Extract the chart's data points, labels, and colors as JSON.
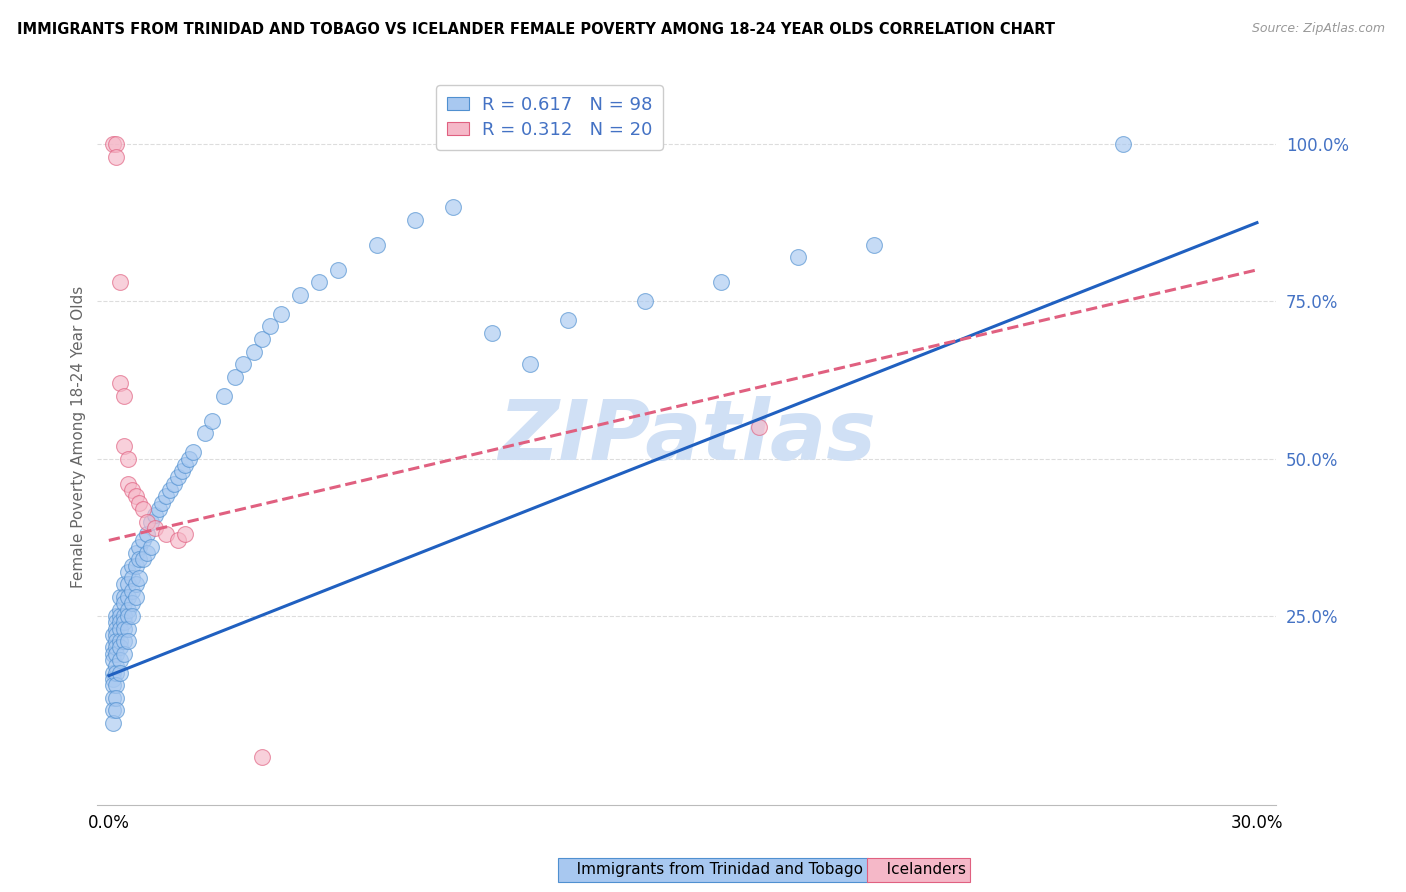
{
  "title": "IMMIGRANTS FROM TRINIDAD AND TOBAGO VS ICELANDER FEMALE POVERTY AMONG 18-24 YEAR OLDS CORRELATION CHART",
  "source": "Source: ZipAtlas.com",
  "ylabel": "Female Poverty Among 18-24 Year Olds",
  "xlim": [
    -0.003,
    0.305
  ],
  "ylim": [
    -0.05,
    1.12
  ],
  "xtick_positions": [
    0.0,
    0.05,
    0.1,
    0.15,
    0.2,
    0.25,
    0.3
  ],
  "xticklabels": [
    "0.0%",
    "",
    "",
    "",
    "",
    "",
    "30.0%"
  ],
  "ytick_positions": [
    0.0,
    0.25,
    0.5,
    0.75,
    1.0
  ],
  "yticklabels_right": [
    "",
    "25.0%",
    "50.0%",
    "75.0%",
    "100.0%"
  ],
  "blue_R": 0.617,
  "blue_N": 98,
  "pink_R": 0.312,
  "pink_N": 20,
  "blue_fill": "#A8C8F0",
  "pink_fill": "#F5B8C8",
  "blue_edge": "#5090D0",
  "pink_edge": "#E06080",
  "blue_line_color": "#2060C0",
  "pink_line_color": "#E06080",
  "right_axis_color": "#4472C4",
  "watermark_color": "#D0E0F5",
  "legend_color": "#4472C4",
  "legend_N_color": "#CC2222",
  "grid_color": "#DDDDDD",
  "blue_line_x0": 0.0,
  "blue_line_y0": 0.155,
  "blue_line_x1": 0.3,
  "blue_line_y1": 0.875,
  "pink_line_x0": 0.0,
  "pink_line_y0": 0.37,
  "pink_line_x1": 0.3,
  "pink_line_y1": 0.8,
  "blue_x": [
    0.001,
    0.001,
    0.001,
    0.001,
    0.001,
    0.001,
    0.001,
    0.001,
    0.001,
    0.001,
    0.002,
    0.002,
    0.002,
    0.002,
    0.002,
    0.002,
    0.002,
    0.002,
    0.002,
    0.002,
    0.002,
    0.002,
    0.003,
    0.003,
    0.003,
    0.003,
    0.003,
    0.003,
    0.003,
    0.003,
    0.003,
    0.004,
    0.004,
    0.004,
    0.004,
    0.004,
    0.004,
    0.004,
    0.004,
    0.005,
    0.005,
    0.005,
    0.005,
    0.005,
    0.005,
    0.005,
    0.006,
    0.006,
    0.006,
    0.006,
    0.006,
    0.007,
    0.007,
    0.007,
    0.007,
    0.008,
    0.008,
    0.008,
    0.009,
    0.009,
    0.01,
    0.01,
    0.011,
    0.011,
    0.012,
    0.013,
    0.014,
    0.015,
    0.016,
    0.017,
    0.018,
    0.019,
    0.02,
    0.021,
    0.022,
    0.025,
    0.027,
    0.03,
    0.033,
    0.035,
    0.038,
    0.04,
    0.042,
    0.045,
    0.05,
    0.055,
    0.06,
    0.07,
    0.08,
    0.09,
    0.1,
    0.11,
    0.12,
    0.14,
    0.16,
    0.18,
    0.2,
    0.265
  ],
  "blue_y": [
    0.22,
    0.2,
    0.19,
    0.18,
    0.16,
    0.15,
    0.14,
    0.12,
    0.1,
    0.08,
    0.25,
    0.24,
    0.23,
    0.22,
    0.21,
    0.2,
    0.19,
    0.17,
    0.16,
    0.14,
    0.12,
    0.1,
    0.28,
    0.26,
    0.25,
    0.24,
    0.23,
    0.21,
    0.2,
    0.18,
    0.16,
    0.3,
    0.28,
    0.27,
    0.25,
    0.24,
    0.23,
    0.21,
    0.19,
    0.32,
    0.3,
    0.28,
    0.26,
    0.25,
    0.23,
    0.21,
    0.33,
    0.31,
    0.29,
    0.27,
    0.25,
    0.35,
    0.33,
    0.3,
    0.28,
    0.36,
    0.34,
    0.31,
    0.37,
    0.34,
    0.38,
    0.35,
    0.4,
    0.36,
    0.41,
    0.42,
    0.43,
    0.44,
    0.45,
    0.46,
    0.47,
    0.48,
    0.49,
    0.5,
    0.51,
    0.54,
    0.56,
    0.6,
    0.63,
    0.65,
    0.67,
    0.69,
    0.71,
    0.73,
    0.76,
    0.78,
    0.8,
    0.84,
    0.88,
    0.9,
    0.7,
    0.65,
    0.72,
    0.75,
    0.78,
    0.82,
    0.84,
    1.0
  ],
  "pink_x": [
    0.001,
    0.002,
    0.002,
    0.003,
    0.003,
    0.004,
    0.004,
    0.005,
    0.005,
    0.006,
    0.007,
    0.008,
    0.009,
    0.01,
    0.012,
    0.015,
    0.018,
    0.02,
    0.17,
    0.04
  ],
  "pink_y": [
    1.0,
    1.0,
    0.98,
    0.78,
    0.62,
    0.6,
    0.52,
    0.5,
    0.46,
    0.45,
    0.44,
    0.43,
    0.42,
    0.4,
    0.39,
    0.38,
    0.37,
    0.38,
    0.55,
    0.025
  ]
}
